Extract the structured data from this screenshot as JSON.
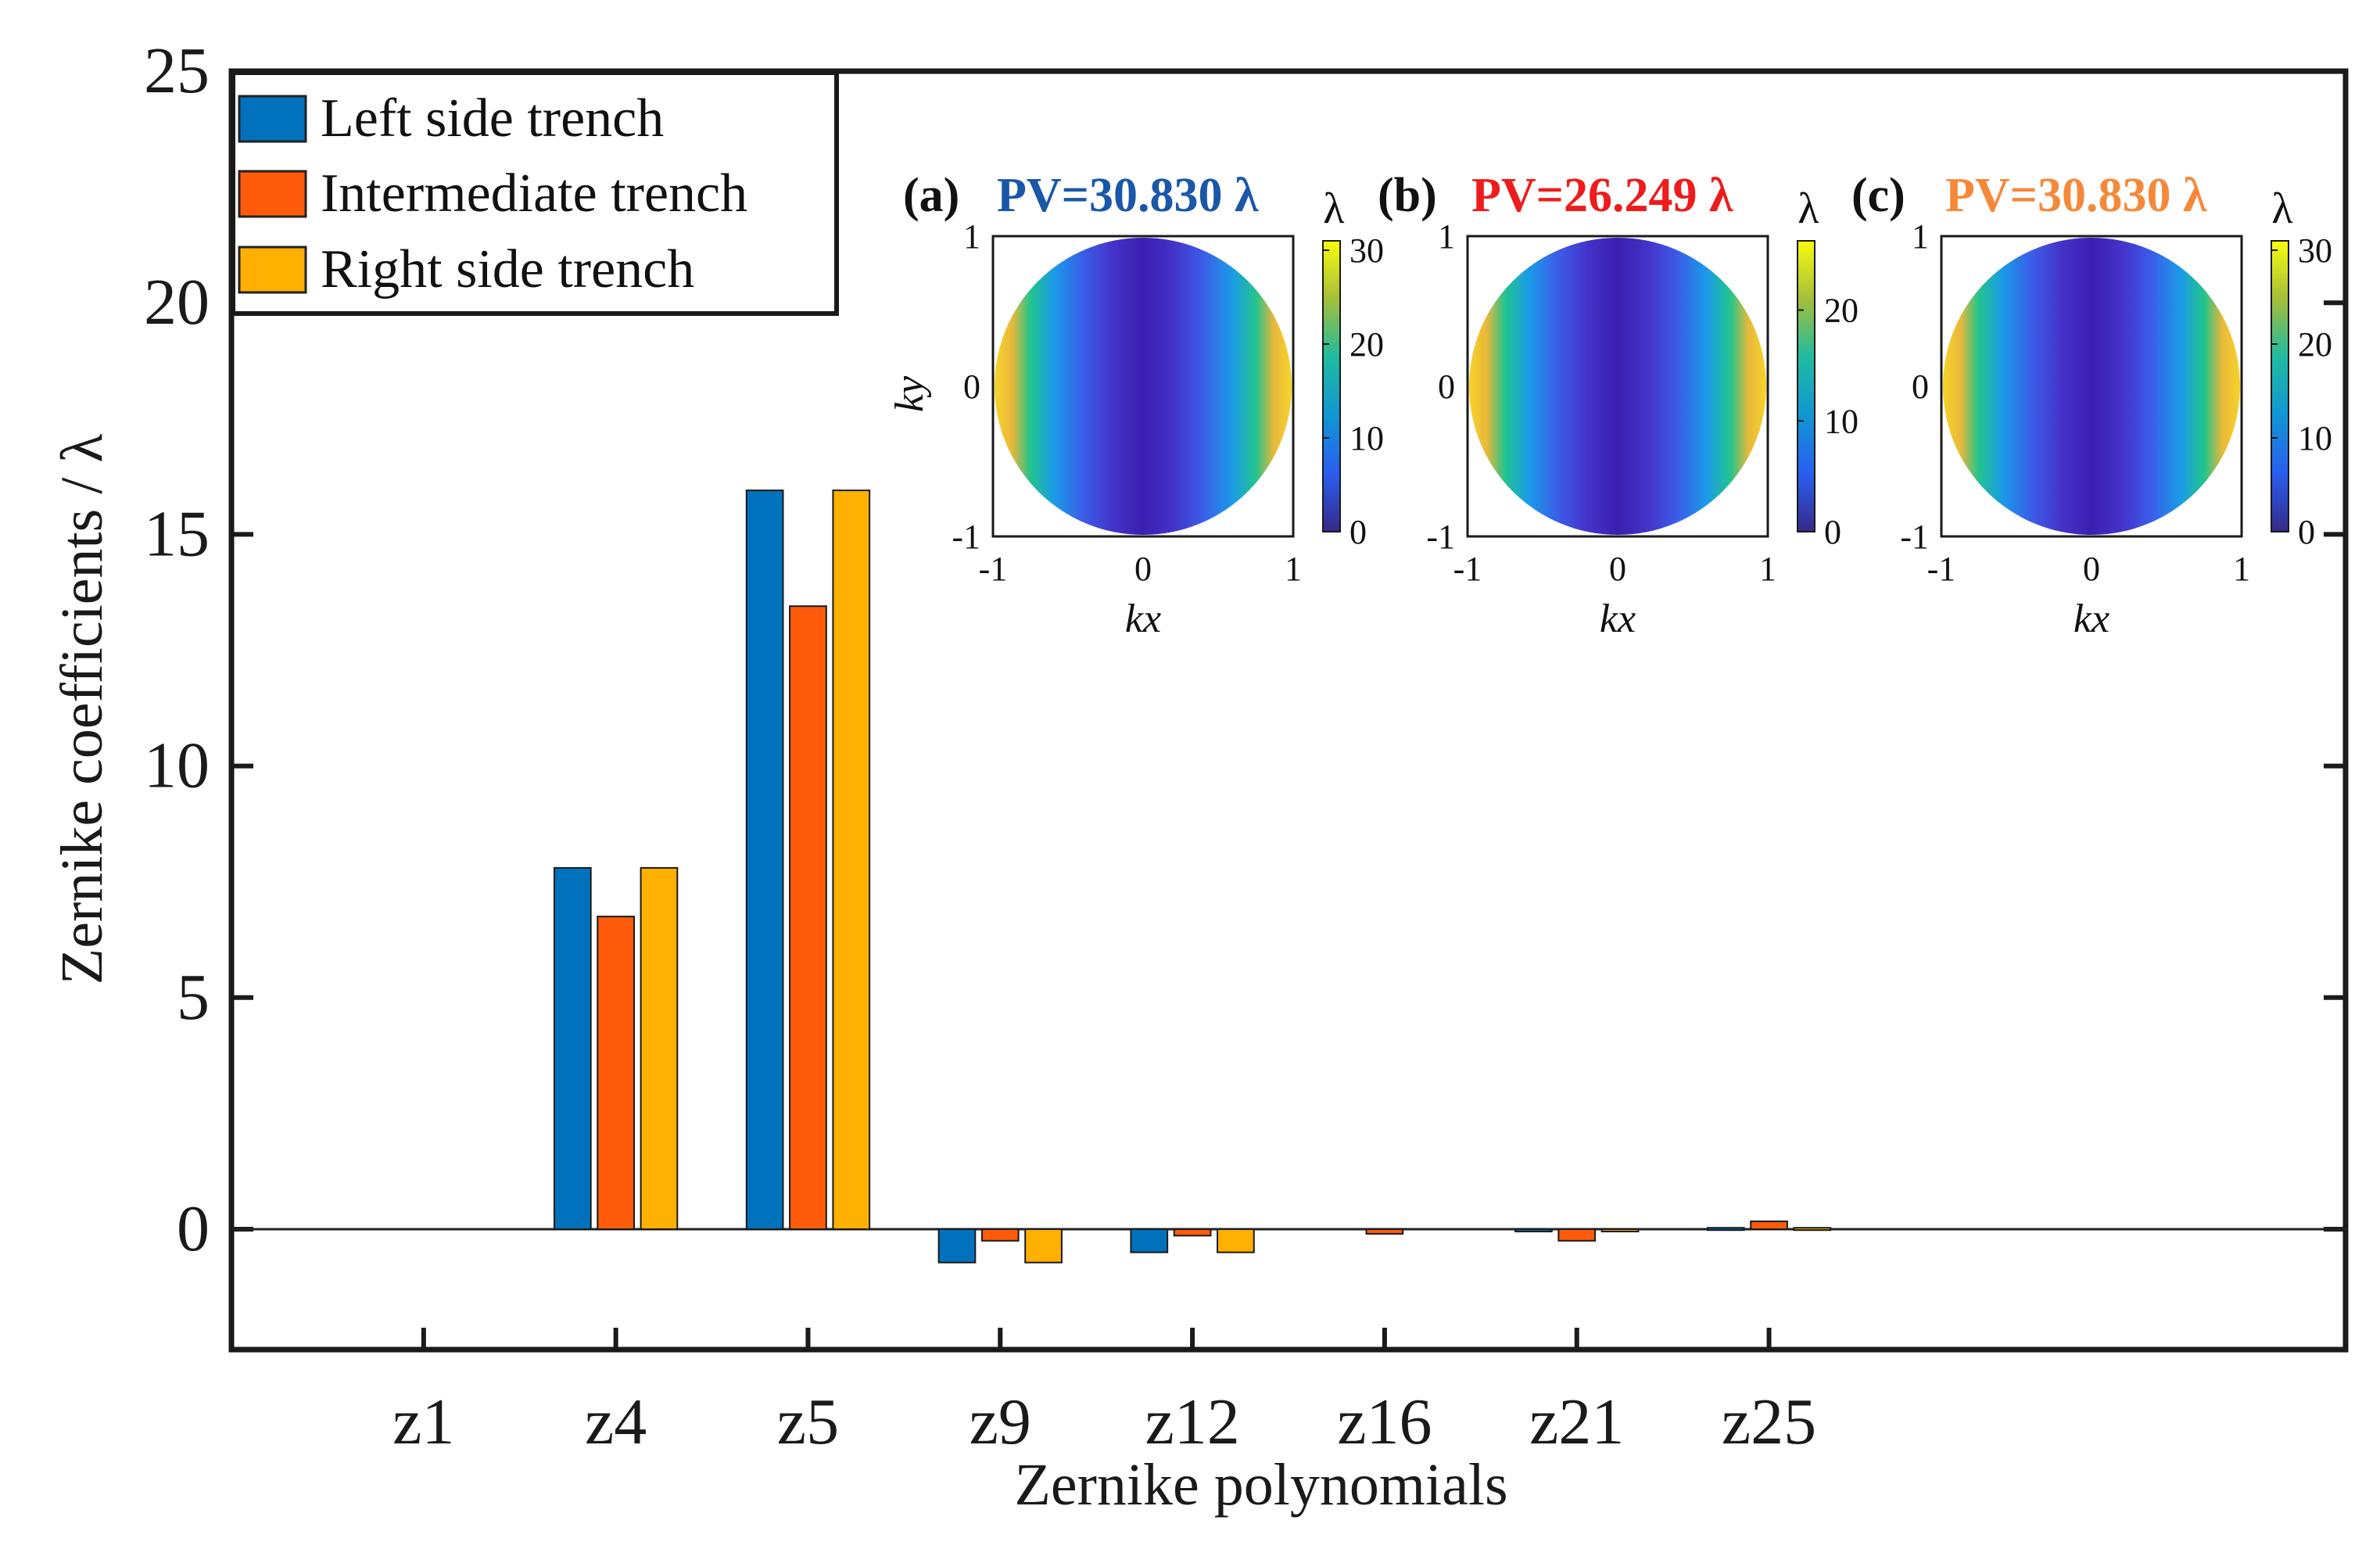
{
  "chart_data": {
    "type": "bar",
    "title": "",
    "xlabel": "Zernike polynomials",
    "ylabel": "Zernike coefficients / λ",
    "ylim": [
      -2.6,
      25
    ],
    "yticks": [
      0,
      5,
      10,
      15,
      20,
      25
    ],
    "categories": [
      "z1",
      "z4",
      "z5",
      "z9",
      "z12",
      "z16",
      "z21",
      "z25"
    ],
    "x_extent": [
      0,
      11
    ],
    "series": [
      {
        "name": "Left side trench",
        "color": "#0072BD",
        "values": [
          0,
          7.8,
          15.95,
          -0.72,
          -0.5,
          0,
          -0.04,
          0.03
        ]
      },
      {
        "name": "Intermediate trench",
        "color": "#FF5B0A",
        "values": [
          0,
          6.75,
          13.45,
          -0.25,
          -0.14,
          -0.1,
          -0.25,
          0.17
        ]
      },
      {
        "name": "Right side trench",
        "color": "#FFB000",
        "values": [
          0,
          7.8,
          15.95,
          -0.72,
          -0.5,
          0,
          -0.04,
          0.03
        ]
      }
    ],
    "legend": {
      "position": "top-left",
      "entries": [
        "Left side trench",
        "Intermediate trench",
        "Right side trench"
      ]
    },
    "insets": [
      {
        "panel": "(a)",
        "pv_label": "PV=30.830 λ",
        "pv_color": "#1a57a8",
        "colorbar_label": "λ",
        "colorbar_ticks": [
          "0",
          "10",
          "20",
          "30"
        ],
        "colorbar_max": 31,
        "xlabel": "kx",
        "ylabel": "ky",
        "axis_ticks": [
          "-1",
          "0",
          "1"
        ]
      },
      {
        "panel": "(b)",
        "pv_label": "PV=26.249 λ",
        "pv_color": "#ee1c1c",
        "colorbar_label": "λ",
        "colorbar_ticks": [
          "0",
          "10",
          "20"
        ],
        "colorbar_max": 26.25,
        "xlabel": "kx",
        "ylabel": "",
        "axis_ticks": [
          "-1",
          "0",
          "1"
        ]
      },
      {
        "panel": "(c)",
        "pv_label": "PV=30.830 λ",
        "pv_color": "#f5893a",
        "colorbar_label": "λ",
        "colorbar_ticks": [
          "0",
          "10",
          "20",
          "30"
        ],
        "colorbar_max": 31,
        "xlabel": "kx",
        "ylabel": "",
        "axis_ticks": [
          "-1",
          "0",
          "1"
        ]
      }
    ]
  }
}
